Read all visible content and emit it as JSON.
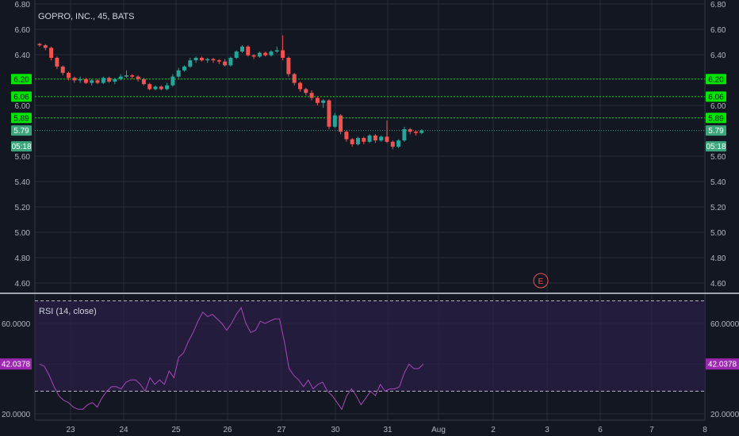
{
  "title": "GOPRO, INC., 45, BATS",
  "colors": {
    "background": "#131722",
    "grid": "#2a2e39",
    "up": "#26a69a",
    "down": "#ef5350",
    "level_line": "#00e600",
    "current_price": "#3ba57b",
    "rsi_line": "#ab47bc",
    "rsi_band": "#2a1f45",
    "rsi_tag": "#9c27b0",
    "earnings": "#ef5350"
  },
  "chart_data": [
    {
      "type": "candlestick",
      "title": "GOPRO, INC., 45, BATS",
      "ylim": [
        4.5,
        6.82
      ],
      "y_ticks": [
        "6.80",
        "6.60",
        "6.40",
        "6.00",
        "5.60",
        "5.40",
        "5.20",
        "5.00",
        "4.80",
        "4.60"
      ],
      "x_ticks": [
        "23",
        "24",
        "25",
        "26",
        "27",
        "30",
        "31",
        "Aug",
        "2",
        "3",
        "6",
        "7",
        "8"
      ],
      "levels": [
        {
          "label": "6.20",
          "value": 6.2
        },
        {
          "label": "6.06",
          "value": 6.06
        },
        {
          "label": "5.89",
          "value": 5.89
        }
      ],
      "current_price": {
        "label": "5.79",
        "value": 5.79,
        "countdown": "05:18"
      },
      "earnings_marker": "E",
      "candles": [
        [
          6.48,
          6.49,
          6.46,
          6.47
        ],
        [
          6.47,
          6.48,
          6.43,
          6.45
        ],
        [
          6.45,
          6.46,
          6.35,
          6.37
        ],
        [
          6.37,
          6.38,
          6.28,
          6.3
        ],
        [
          6.3,
          6.31,
          6.23,
          6.25
        ],
        [
          6.25,
          6.26,
          6.19,
          6.21
        ],
        [
          6.21,
          6.22,
          6.17,
          6.19
        ],
        [
          6.19,
          6.22,
          6.17,
          6.2
        ],
        [
          6.2,
          6.21,
          6.16,
          6.17
        ],
        [
          6.17,
          6.2,
          6.15,
          6.19
        ],
        [
          6.19,
          6.2,
          6.16,
          6.17
        ],
        [
          6.17,
          6.22,
          6.16,
          6.21
        ],
        [
          6.21,
          6.22,
          6.17,
          6.18
        ],
        [
          6.18,
          6.21,
          6.16,
          6.2
        ],
        [
          6.2,
          6.24,
          6.19,
          6.22
        ],
        [
          6.22,
          6.27,
          6.21,
          6.23
        ],
        [
          6.23,
          6.24,
          6.2,
          6.22
        ],
        [
          6.22,
          6.23,
          6.18,
          6.2
        ],
        [
          6.2,
          6.21,
          6.15,
          6.16
        ],
        [
          6.16,
          6.17,
          6.11,
          6.12
        ],
        [
          6.12,
          6.15,
          6.11,
          6.14
        ],
        [
          6.14,
          6.15,
          6.11,
          6.12
        ],
        [
          6.12,
          6.17,
          6.11,
          6.15
        ],
        [
          6.15,
          6.24,
          6.14,
          6.22
        ],
        [
          6.22,
          6.29,
          6.21,
          6.27
        ],
        [
          6.27,
          6.31,
          6.26,
          6.3
        ],
        [
          6.3,
          6.37,
          6.29,
          6.35
        ],
        [
          6.35,
          6.38,
          6.33,
          6.37
        ],
        [
          6.37,
          6.38,
          6.34,
          6.35
        ],
        [
          6.35,
          6.37,
          6.33,
          6.36
        ],
        [
          6.36,
          6.37,
          6.33,
          6.35
        ],
        [
          6.35,
          6.36,
          6.32,
          6.34
        ],
        [
          6.34,
          6.36,
          6.3,
          6.31
        ],
        [
          6.31,
          6.38,
          6.3,
          6.37
        ],
        [
          6.37,
          6.43,
          6.36,
          6.42
        ],
        [
          6.42,
          6.47,
          6.41,
          6.46
        ],
        [
          6.46,
          6.47,
          6.38,
          6.39
        ],
        [
          6.39,
          6.4,
          6.36,
          6.38
        ],
        [
          6.38,
          6.42,
          6.37,
          6.41
        ],
        [
          6.41,
          6.42,
          6.38,
          6.39
        ],
        [
          6.39,
          6.43,
          6.38,
          6.42
        ],
        [
          6.42,
          6.46,
          6.41,
          6.43
        ],
        [
          6.43,
          6.55,
          6.35,
          6.37
        ],
        [
          6.37,
          6.38,
          6.22,
          6.24
        ],
        [
          6.24,
          6.25,
          6.15,
          6.17
        ],
        [
          6.17,
          6.18,
          6.1,
          6.12
        ],
        [
          6.12,
          6.13,
          6.07,
          6.09
        ],
        [
          6.09,
          6.11,
          6.03,
          6.05
        ],
        [
          6.05,
          6.06,
          5.99,
          6.01
        ],
        [
          6.01,
          6.04,
          5.97,
          6.03
        ],
        [
          6.03,
          6.04,
          5.8,
          5.82
        ],
        [
          5.82,
          5.93,
          5.81,
          5.91
        ],
        [
          5.91,
          5.92,
          5.76,
          5.78
        ],
        [
          5.78,
          5.79,
          5.7,
          5.72
        ],
        [
          5.72,
          5.73,
          5.66,
          5.68
        ],
        [
          5.68,
          5.74,
          5.67,
          5.73
        ],
        [
          5.73,
          5.74,
          5.68,
          5.7
        ],
        [
          5.7,
          5.76,
          5.69,
          5.75
        ],
        [
          5.75,
          5.76,
          5.69,
          5.71
        ],
        [
          5.71,
          5.75,
          5.7,
          5.74
        ],
        [
          5.74,
          5.87,
          5.69,
          5.7
        ],
        [
          5.7,
          5.71,
          5.64,
          5.66
        ],
        [
          5.66,
          5.72,
          5.65,
          5.71
        ],
        [
          5.71,
          5.82,
          5.7,
          5.8
        ],
        [
          5.8,
          5.81,
          5.76,
          5.78
        ],
        [
          5.78,
          5.79,
          5.75,
          5.77
        ],
        [
          5.77,
          5.8,
          5.76,
          5.79
        ]
      ]
    },
    {
      "type": "line",
      "title": "RSI (14, close)",
      "ylim": [
        18,
        75
      ],
      "y_ticks": [
        "60.0000",
        "20.0000"
      ],
      "bands": [
        70,
        30
      ],
      "current_value": {
        "label": "42.0378",
        "value": 42.04
      },
      "values": [
        42,
        41,
        37,
        32,
        28,
        26,
        25,
        23,
        22,
        22,
        24,
        25,
        23,
        27,
        30,
        32,
        32,
        31,
        34,
        35,
        35,
        33,
        30,
        36,
        33,
        35,
        33,
        39,
        36,
        45,
        47,
        52,
        56,
        61,
        65,
        63,
        64,
        62,
        60,
        57,
        60,
        64,
        67,
        60,
        56,
        57,
        61,
        60,
        61,
        62,
        62,
        52,
        40,
        37,
        35,
        32,
        35,
        31,
        33,
        34,
        30,
        28,
        25,
        22,
        28,
        31,
        28,
        24,
        27,
        30,
        28,
        33,
        30,
        31,
        31,
        32,
        38,
        42,
        40,
        40,
        42.04
      ]
    }
  ]
}
